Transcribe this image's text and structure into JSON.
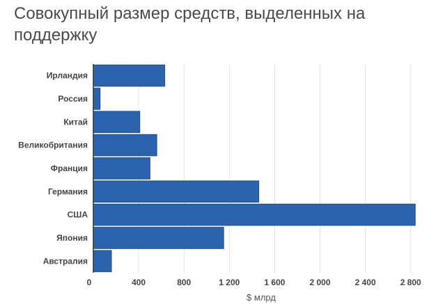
{
  "colors": {
    "bar": "#2b63ad",
    "bar_edge": "#1f4e8c",
    "grid": "#e2e2e2",
    "axis": "#333333"
  },
  "chart_data": {
    "type": "bar",
    "orientation": "horizontal",
    "title": "Совокупный размер средств, выделенных на поддержку",
    "xlabel": "$ млрд",
    "ylabel": "",
    "categories": [
      "Ирландия",
      "Россия",
      "Китай",
      "Великобритания",
      "Франция",
      "Германия",
      "США",
      "Япония",
      "Австралия"
    ],
    "values": [
      630,
      60,
      410,
      560,
      500,
      1460,
      2840,
      1150,
      160
    ],
    "xlim": [
      0,
      2900
    ],
    "x_ticks": [
      0,
      400,
      800,
      1200,
      1600,
      2000,
      2400,
      2800
    ],
    "x_tick_labels": [
      "0",
      "400",
      "800",
      "1 200",
      "1 600",
      "2 000",
      "2 400",
      "2 800"
    ],
    "grid": true,
    "legend": "none"
  }
}
